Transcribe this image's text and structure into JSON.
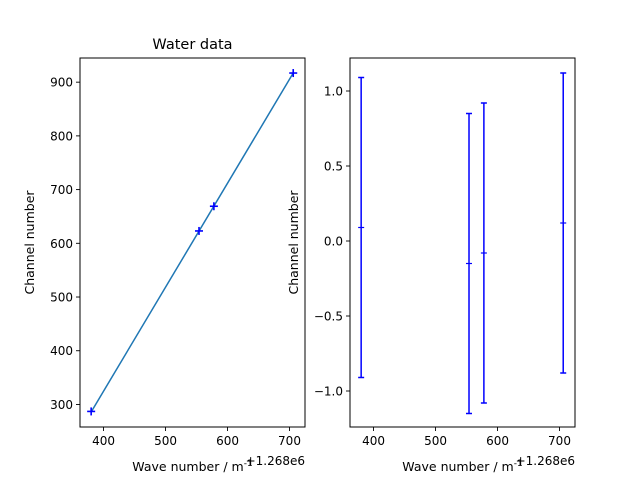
{
  "chart_data": [
    {
      "type": "scatter",
      "title": "Water data",
      "xlabel": "Wave number / m",
      "xlabel_superscript": "-1",
      "ylabel": "Channel number",
      "offset_text": "+1.268e6",
      "xlim": [
        362,
        725
      ],
      "ylim": [
        258,
        945
      ],
      "xticks": [
        400,
        500,
        600,
        700
      ],
      "yticks": [
        300,
        400,
        500,
        600,
        700,
        800,
        900
      ],
      "fit_line": {
        "x": [
          380,
          706
        ],
        "y": [
          286,
          917
        ],
        "color": "#1f77b4"
      },
      "points": {
        "marker": "+",
        "color": "#0000ff",
        "x": [
          380,
          554,
          578,
          706
        ],
        "y": [
          287,
          623,
          669,
          917
        ]
      }
    },
    {
      "type": "scatter",
      "title": "",
      "xlabel": "Wave number / m",
      "xlabel_superscript": "-1",
      "ylabel": "Channel number",
      "offset_text": "+1.268e6",
      "xlim": [
        362,
        725
      ],
      "ylim": [
        -1.24,
        1.22
      ],
      "xticks": [
        400,
        500,
        600,
        700
      ],
      "yticks": [
        -1.0,
        -0.5,
        0.0,
        0.5,
        1.0
      ],
      "ytick_labels": [
        "−1.0",
        "−0.5",
        "0.0",
        "0.5",
        "1.0"
      ],
      "errorbars": {
        "color": "#0000ff",
        "x": [
          380,
          554,
          578,
          706
        ],
        "y": [
          0.09,
          -0.15,
          -0.08,
          0.12
        ],
        "yerr": [
          1.0,
          1.0,
          1.0,
          1.0
        ]
      }
    }
  ]
}
